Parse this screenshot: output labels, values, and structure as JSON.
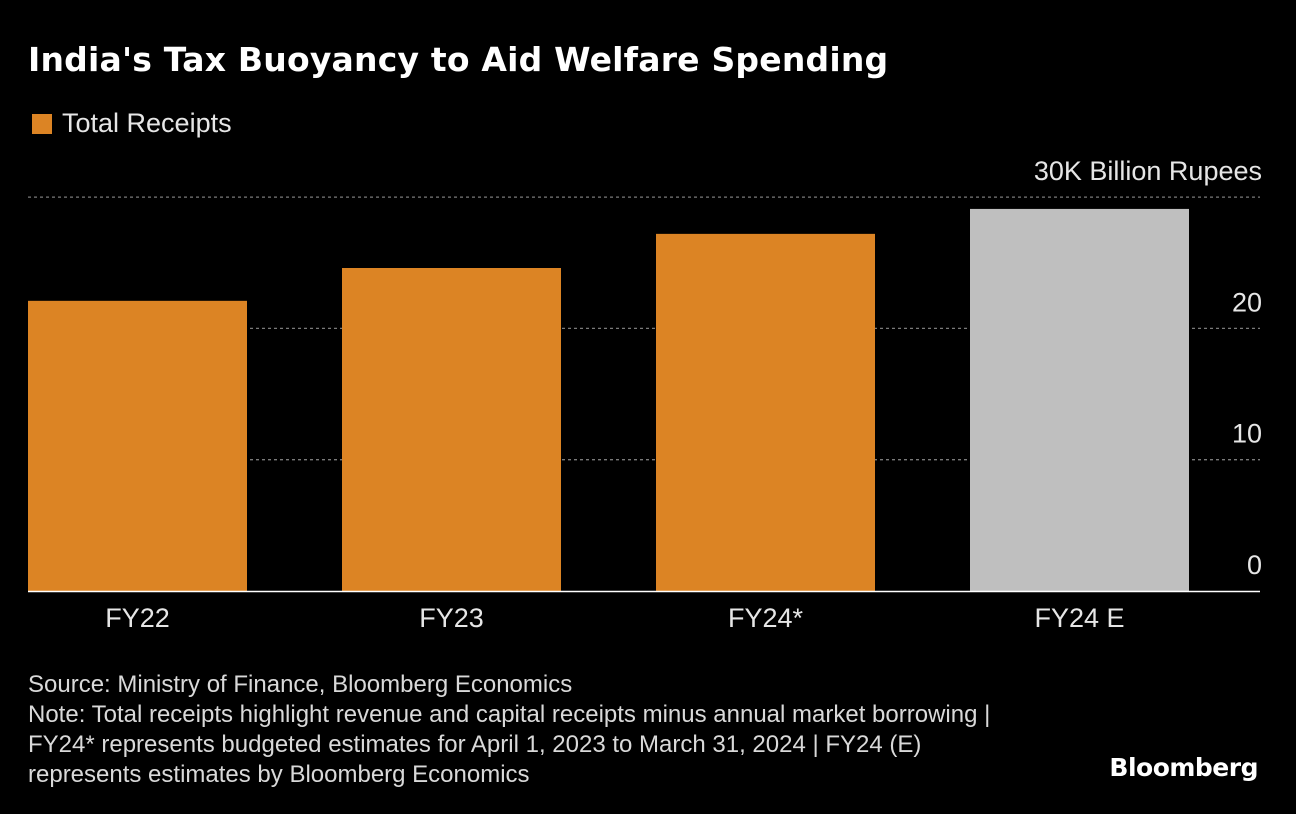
{
  "colors": {
    "background": "#000000",
    "actual": "#dc8424",
    "estimate": "#bfbfbf",
    "grid": "#7a7a7a"
  },
  "chart_data": {
    "type": "bar",
    "title": "India's Tax Buoyancy to Aid Welfare Spending",
    "legend": [
      "Total Receipts"
    ],
    "legend_position": "top-left",
    "unit_label": "30K Billion Rupees",
    "categories": [
      "FY22",
      "FY23",
      "FY24*",
      "FY24 E"
    ],
    "values": [
      22.1,
      24.6,
      27.2,
      29.1
    ],
    "series_kind": [
      "actual",
      "actual",
      "actual",
      "estimate"
    ],
    "y_ticks": [
      0,
      10,
      20,
      30
    ],
    "y_tick_labels": [
      "0",
      "10",
      "20",
      "30K Billion Rupees"
    ],
    "ylim": [
      0,
      30
    ],
    "grid": true,
    "y_axis_side": "right"
  },
  "footer": {
    "source": "Source: Ministry of Finance, Bloomberg Economics",
    "note": "Note: Total receipts highlight revenue and capital receipts minus annual market borrowing | FY24* represents budgeted estimates for April 1, 2023 to March 31, 2024 | FY24 (E) represents estimates by Bloomberg Economics"
  },
  "brand": "Bloomberg"
}
